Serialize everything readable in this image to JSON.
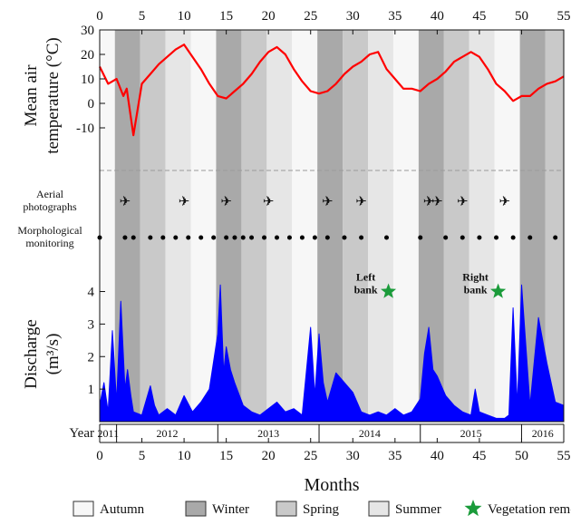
{
  "chart_data": {
    "type": "line",
    "x_axis": {
      "label": "Months",
      "ticks": [
        0,
        5,
        10,
        15,
        20,
        25,
        30,
        35,
        40,
        45,
        50,
        55
      ],
      "range": [
        0,
        55
      ],
      "repeated_on_top": true
    },
    "season_bands": [
      {
        "season": "Autumn",
        "start": 0,
        "end": 1.8
      },
      {
        "season": "Winter",
        "start": 1.8,
        "end": 4.8
      },
      {
        "season": "Spring",
        "start": 4.8,
        "end": 7.8
      },
      {
        "season": "Summer",
        "start": 7.8,
        "end": 10.8
      },
      {
        "season": "Autumn",
        "start": 10.8,
        "end": 13.8
      },
      {
        "season": "Winter",
        "start": 13.8,
        "end": 16.8
      },
      {
        "season": "Spring",
        "start": 16.8,
        "end": 19.8
      },
      {
        "season": "Summer",
        "start": 19.8,
        "end": 22.8
      },
      {
        "season": "Autumn",
        "start": 22.8,
        "end": 25.8
      },
      {
        "season": "Winter",
        "start": 25.8,
        "end": 28.8
      },
      {
        "season": "Spring",
        "start": 28.8,
        "end": 31.8
      },
      {
        "season": "Summer",
        "start": 31.8,
        "end": 34.8
      },
      {
        "season": "Autumn",
        "start": 34.8,
        "end": 37.8
      },
      {
        "season": "Winter",
        "start": 37.8,
        "end": 40.8
      },
      {
        "season": "Spring",
        "start": 40.8,
        "end": 43.8
      },
      {
        "season": "Summer",
        "start": 43.8,
        "end": 46.8
      },
      {
        "season": "Autumn",
        "start": 46.8,
        "end": 49.8
      },
      {
        "season": "Winter",
        "start": 49.8,
        "end": 52.8
      },
      {
        "season": "Spring",
        "start": 52.8,
        "end": 55
      }
    ],
    "season_colors": {
      "Autumn": "#f7f7f7",
      "Winter": "#a9a9a9",
      "Spring": "#c9c9c9",
      "Summer": "#e6e6e6"
    },
    "temperature": {
      "ylabel": "Mean air temperature (°C)",
      "yticks": [
        -10,
        0,
        10,
        20,
        30
      ],
      "ylim": [
        -20,
        30
      ],
      "color": "#ff0000",
      "x": [
        0,
        1,
        2,
        2.8,
        3.2,
        4,
        5,
        6,
        7,
        8,
        9,
        10,
        11,
        12,
        13,
        14,
        15,
        16,
        17,
        18,
        19,
        20,
        21,
        22,
        23,
        24,
        25,
        26,
        27,
        28,
        29,
        30,
        31,
        32,
        33,
        34,
        35,
        36,
        37,
        38,
        39,
        40,
        41,
        42,
        43,
        44,
        45,
        46,
        47,
        48,
        49,
        50,
        51,
        52,
        53,
        54,
        55
      ],
      "y": [
        15,
        8,
        10,
        3,
        6,
        -13,
        8,
        12,
        16,
        19,
        22,
        24,
        19,
        14,
        8,
        3,
        2,
        5,
        8,
        12,
        17,
        21,
        23,
        20,
        14,
        9,
        5,
        4,
        5,
        8,
        12,
        15,
        17,
        20,
        21,
        14,
        10,
        6,
        6,
        5,
        8,
        10,
        13,
        17,
        19,
        21,
        19,
        14,
        8,
        5,
        1,
        3,
        3,
        6,
        8,
        9,
        11
      ]
    },
    "aerial_photographs": {
      "label": "Aerial photographs",
      "months": [
        3,
        10,
        15,
        20,
        27,
        31,
        39,
        40,
        43,
        48
      ]
    },
    "morphological_monitoring": {
      "label": "Morphological monitoring",
      "months": [
        0,
        3,
        4,
        6,
        7.5,
        9,
        10.5,
        12,
        13.5,
        15,
        16,
        17,
        18,
        19.5,
        21,
        22.5,
        24,
        25.5,
        27,
        29,
        31,
        34,
        38,
        41,
        43,
        45,
        47,
        49,
        51,
        54
      ]
    },
    "discharge": {
      "ylabel": "Discharge (m³/s)",
      "yticks": [
        1,
        2,
        3,
        4
      ],
      "ylim": [
        0,
        4.6
      ],
      "color": "#0000ff",
      "x": [
        0,
        0.5,
        1,
        1.5,
        2,
        2.5,
        3,
        3.3,
        3.7,
        4,
        5,
        6,
        6.5,
        7,
        8,
        9,
        10,
        11,
        12,
        13,
        14,
        14.3,
        14.7,
        15,
        15.5,
        16,
        17,
        18,
        19,
        20,
        21,
        22,
        23,
        24,
        25,
        25.5,
        26,
        26.5,
        27,
        28,
        29,
        30,
        31,
        32,
        33,
        34,
        35,
        36,
        37,
        38,
        38.5,
        39,
        39.5,
        40,
        41,
        42,
        43,
        44,
        44.5,
        45,
        46,
        47,
        48,
        48.5,
        49,
        49.5,
        50,
        51,
        52,
        53,
        54,
        55
      ],
      "y": [
        0.5,
        1.2,
        0.3,
        2.8,
        0.6,
        3.7,
        1.0,
        1.6,
        0.8,
        0.3,
        0.2,
        1.1,
        0.5,
        0.2,
        0.4,
        0.2,
        0.8,
        0.3,
        0.6,
        1.0,
        2.7,
        4.2,
        1.5,
        2.3,
        1.6,
        1.2,
        0.5,
        0.3,
        0.2,
        0.4,
        0.6,
        0.3,
        0.4,
        0.2,
        2.9,
        0.8,
        2.7,
        1.2,
        0.6,
        1.5,
        1.2,
        0.9,
        0.3,
        0.2,
        0.3,
        0.2,
        0.4,
        0.2,
        0.3,
        0.7,
        2.1,
        2.9,
        1.6,
        1.4,
        0.8,
        0.5,
        0.3,
        0.2,
        1.0,
        0.3,
        0.2,
        0.1,
        0.1,
        0.2,
        3.5,
        0.5,
        4.2,
        0.5,
        3.2,
        1.8,
        0.6,
        0.5
      ]
    },
    "vegetation_removal": [
      {
        "month": 31,
        "label": [
          "Left",
          "bank"
        ],
        "value": 4.0
      },
      {
        "month": 44,
        "label": [
          "Right",
          "bank"
        ],
        "value": 4.0
      }
    ],
    "year_axis": {
      "label": "Year",
      "years": [
        {
          "year": "2011",
          "start": 0,
          "end": 2
        },
        {
          "year": "2012",
          "start": 2,
          "end": 14
        },
        {
          "year": "2013",
          "start": 14,
          "end": 26
        },
        {
          "year": "2014",
          "start": 26,
          "end": 38
        },
        {
          "year": "2015",
          "start": 38,
          "end": 50
        },
        {
          "year": "2016",
          "start": 50,
          "end": 55
        }
      ]
    },
    "legend": [
      {
        "label": "Autumn",
        "type": "box",
        "color": "#f7f7f7"
      },
      {
        "label": "Winter",
        "type": "box",
        "color": "#a9a9a9"
      },
      {
        "label": "Spring",
        "type": "box",
        "color": "#c9c9c9"
      },
      {
        "label": "Summer",
        "type": "box",
        "color": "#e6e6e6"
      },
      {
        "label": "Vegetation removal",
        "type": "star",
        "color": "#1a9b3a"
      }
    ]
  }
}
